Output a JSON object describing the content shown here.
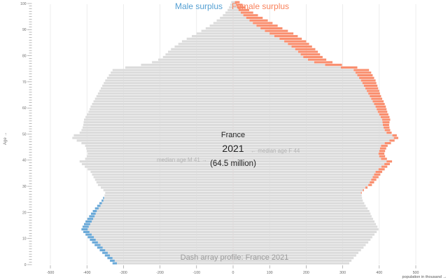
{
  "header": {
    "legend_male": "Male surplus",
    "legend_female": "Female surplus"
  },
  "center_labels": {
    "country": "France",
    "year": "2021",
    "population_total": "(64.5 million)"
  },
  "annotations": {
    "median_male": "median age M 41 →",
    "median_female": "←  median age F 44",
    "footnote": "Dash array profile: France 2021"
  },
  "axes": {
    "y_axis_label": "Age →",
    "x_axis_label": "population in thousand →",
    "x_ticks": [
      -500,
      -400,
      -300,
      -200,
      -100,
      0,
      100,
      200,
      300,
      400,
      500
    ],
    "y_tick_labels": [
      0,
      10,
      20,
      30,
      40,
      50,
      60,
      70,
      80,
      90,
      100
    ]
  },
  "colors": {
    "male": "#69a8d7",
    "female": "#f98e6e",
    "overlap": "#dbdbdb",
    "grid": "#e4e4e4",
    "center_line": "#f2cfcf",
    "legend_male": "#55a0d3",
    "legend_female": "#f9825c",
    "axis_text": "#666666",
    "annotation_text": "#b3b3b3",
    "footnote_text": "#9b9b9b",
    "title_text": "#222222"
  },
  "chart_data": {
    "type": "bar",
    "variant": "population-pyramid-with-surplus",
    "title": "France 2021 (64.5 million)",
    "unit": "thousands of people per single year of age",
    "xlabel": "population in thousand",
    "ylabel": "Age",
    "xlim": [
      -500,
      500
    ],
    "age_range": [
      0,
      100
    ],
    "median_age_male": 41,
    "median_age_female": 44,
    "legend": [
      "Male surplus",
      "Female surplus"
    ],
    "series": [
      {
        "name": "male",
        "values": [
          330,
          337,
          344,
          351,
          358,
          365,
          372,
          379,
          386,
          392,
          398,
          404,
          410,
          415,
          412,
          408,
          404,
          399,
          394,
          389,
          384,
          378,
          372,
          366,
          360,
          356,
          352,
          350,
          355,
          362,
          370,
          374,
          378,
          382,
          386,
          390,
          398,
          406,
          414,
          420,
          405,
          400,
          398,
          400,
          402,
          405,
          415,
          428,
          440,
          436,
          420,
          415,
          412,
          410,
          409,
          408,
          404,
          400,
          396,
          393,
          390,
          386,
          382,
          378,
          374,
          370,
          366,
          362,
          358,
          354,
          350,
          345,
          340,
          335,
          330,
          295,
          252,
          222,
          205,
          192,
          185,
          178,
          170,
          160,
          150,
          140,
          127,
          113,
          100,
          87,
          75,
          64,
          54,
          45,
          36,
          28,
          21,
          15,
          11,
          8,
          5
        ]
      },
      {
        "name": "female",
        "values": [
          318,
          324,
          330,
          337,
          343,
          350,
          357,
          363,
          370,
          376,
          381,
          387,
          393,
          398,
          395,
          391,
          387,
          383,
          379,
          376,
          373,
          368,
          363,
          359,
          355,
          353,
          352,
          352,
          358,
          368,
          380,
          386,
          392,
          398,
          403,
          408,
          415,
          422,
          429,
          435,
          421,
          416,
          414,
          416,
          419,
          423,
          432,
          442,
          452,
          448,
          434,
          430,
          428,
          427,
          428,
          430,
          428,
          425,
          422,
          420,
          418,
          415,
          412,
          408,
          405,
          402,
          400,
          397,
          395,
          392,
          390,
          386,
          382,
          378,
          372,
          340,
          298,
          272,
          255,
          245,
          238,
          232,
          225,
          216,
          208,
          200,
          188,
          177,
          165,
          150,
          135,
          122,
          108,
          95,
          81,
          68,
          55,
          44,
          34,
          26,
          18
        ]
      }
    ]
  }
}
